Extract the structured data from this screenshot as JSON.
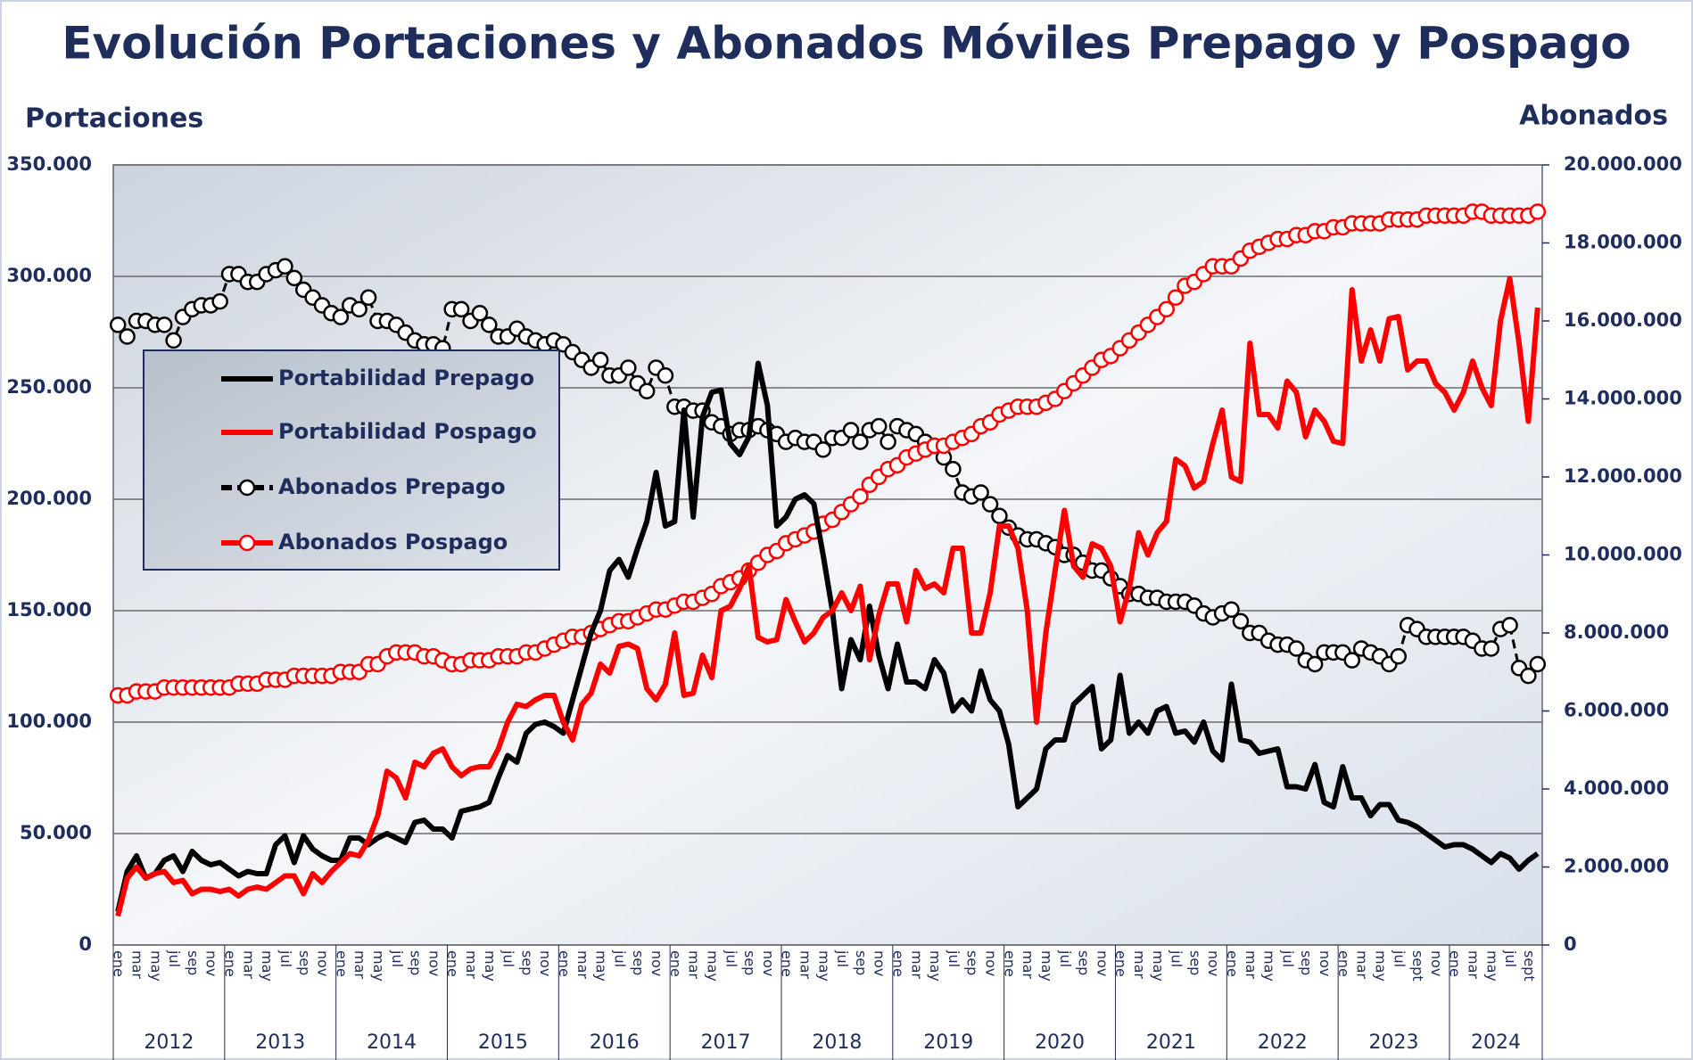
{
  "chart_data": {
    "type": "line",
    "title": "Evolución Portaciones y Abonados Móviles Prepago y Pospago",
    "y_label": "Portaciones",
    "y2_label": "Abonados",
    "years": [
      "2012",
      "2013",
      "2014",
      "2015",
      "2016",
      "2017",
      "2018",
      "2019",
      "2020",
      "2021",
      "2022",
      "2023",
      "2024"
    ],
    "categories": [
      "ene",
      null,
      "mar",
      null,
      "may",
      null,
      "jul",
      null,
      "sep",
      null,
      "nov",
      null,
      "ene",
      null,
      "mar",
      null,
      "may",
      null,
      "jul",
      null,
      "sep",
      null,
      "nov",
      null,
      "ene",
      null,
      "mar",
      null,
      "may",
      null,
      "jul",
      null,
      "sep",
      null,
      "nov",
      null,
      "ene",
      null,
      "mar",
      null,
      "may",
      null,
      "jul",
      null,
      "sep",
      null,
      "nov",
      null,
      "ene",
      null,
      "mar",
      null,
      "may",
      null,
      "jul",
      null,
      "sep",
      null,
      "nov",
      null,
      "ene",
      null,
      "mar",
      null,
      "may",
      null,
      "jul",
      null,
      "sep",
      null,
      "nov",
      null,
      "ene",
      null,
      "mar",
      null,
      "may",
      null,
      "jul",
      null,
      "sep",
      null,
      "nov",
      null,
      "ene",
      null,
      "mar",
      null,
      "may",
      null,
      "jul",
      null,
      "sep",
      null,
      "nov",
      null,
      "ene",
      null,
      "mar",
      null,
      "may",
      null,
      "jul",
      null,
      "sep",
      null,
      "nov",
      null,
      "ene",
      null,
      "mar",
      null,
      "may",
      null,
      "jul",
      null,
      "sep",
      null,
      "nov",
      null,
      "ene",
      null,
      "mar",
      null,
      "may",
      null,
      "jul",
      null,
      "sep",
      null,
      "nov",
      null,
      "ene",
      null,
      "mar",
      null,
      "may",
      null,
      "jul",
      null,
      "sept",
      null,
      "nov",
      null,
      "ene",
      null,
      "mar",
      null,
      "may",
      null,
      "jul",
      null,
      "sept",
      null
    ],
    "ylim": [
      0,
      350000
    ],
    "yticks": [
      0,
      {
        "value": 50000,
        "label": "50.000"
      },
      {
        "value": 100000,
        "label": "100.000"
      },
      {
        "value": 150000,
        "label": "150.000"
      },
      {
        "value": 200000,
        "label": "200.000"
      },
      {
        "value": 250000,
        "label": "250.000"
      },
      {
        "value": 300000,
        "label": "300.000"
      },
      {
        "value": 350000,
        "label": "350.000"
      }
    ],
    "y2lim": [
      0,
      20000000
    ],
    "y2ticks": [
      0,
      {
        "value": 2000000,
        "label": "2.000.000"
      },
      {
        "value": 4000000,
        "label": "4.000.000"
      },
      {
        "value": 6000000,
        "label": "6.000.000"
      },
      {
        "value": 8000000,
        "label": "8.000.000"
      },
      {
        "value": 10000000,
        "label": "10.000.000"
      },
      {
        "value": 12000000,
        "label": "12.000.000"
      },
      {
        "value": 14000000,
        "label": "14.000.000"
      },
      {
        "value": 16000000,
        "label": "16.000.000"
      },
      {
        "value": 18000000,
        "label": "18.000.000"
      },
      {
        "value": 20000000,
        "label": "20.000.000"
      }
    ],
    "grid": true,
    "legend": "upper left",
    "series": [
      {
        "name": "Portabilidad Prepago",
        "color": "#000000",
        "values": [
          15000,
          33000,
          40000,
          30000,
          32000,
          38000,
          40000,
          33000,
          42000,
          38000,
          36000,
          37000,
          34000,
          31000,
          33000,
          32000,
          32000,
          45000,
          49000,
          37000,
          49000,
          43000,
          40000,
          38000,
          38000,
          48000,
          48000,
          45000,
          48000,
          50000,
          48000,
          46000,
          55000,
          56000,
          52000,
          52000,
          48000,
          60000,
          61000,
          62000,
          64000,
          75000,
          85000,
          82000,
          95000,
          99000,
          100000,
          98000,
          95000,
          110000,
          125000,
          140000,
          150000,
          168000,
          173000,
          165000,
          178000,
          190000,
          212000,
          188000,
          190000,
          240000,
          192000,
          237000,
          248000,
          249000,
          225000,
          220000,
          228000,
          261000,
          242000,
          188000,
          192000,
          200000,
          202000,
          198000,
          175000,
          150000,
          115000,
          137000,
          128000,
          152000,
          130000,
          115000,
          135000,
          118000,
          118000,
          115000,
          128000,
          122000,
          105000,
          110000,
          105000,
          123000,
          110000,
          105000,
          90000,
          62000,
          66000,
          70000,
          88000,
          92000,
          92000,
          108000,
          112000,
          116000,
          88000,
          92000,
          121000,
          95000,
          100000,
          95000,
          105000,
          107000,
          95000,
          96000,
          91000,
          100000,
          87000,
          83000,
          117000,
          92000,
          91000,
          86000,
          87000,
          88000,
          71000,
          71000,
          70000,
          81000,
          64000,
          62000,
          80000,
          66000,
          66000,
          58000,
          63000,
          63000,
          56000,
          55000,
          53000,
          50000,
          47000,
          44000,
          45000,
          45000,
          43000,
          40000,
          37000,
          41000,
          39000,
          34000,
          38000,
          41000
        ]
      },
      {
        "name": "Portabilidad Pospago",
        "color": "#ff0000",
        "values": [
          13000,
          30000,
          35000,
          30000,
          32000,
          33000,
          28000,
          29000,
          23000,
          25000,
          25000,
          24000,
          25000,
          22000,
          25000,
          26000,
          25000,
          28000,
          31000,
          31000,
          23000,
          32000,
          28000,
          33000,
          37000,
          41000,
          40000,
          47000,
          58000,
          78000,
          75000,
          66000,
          82000,
          80000,
          86000,
          88000,
          80000,
          76000,
          79000,
          80000,
          80000,
          88000,
          100000,
          108000,
          107000,
          110000,
          112000,
          112000,
          100000,
          92000,
          108000,
          113000,
          126000,
          122000,
          134000,
          135000,
          133000,
          115000,
          110000,
          117000,
          140000,
          112000,
          113000,
          130000,
          120000,
          150000,
          152000,
          160000,
          170000,
          138000,
          136000,
          137000,
          155000,
          145000,
          136000,
          140000,
          147000,
          150000,
          158000,
          150000,
          161000,
          128000,
          148000,
          162000,
          162000,
          145000,
          168000,
          160000,
          162000,
          158000,
          178000,
          178000,
          140000,
          140000,
          158000,
          188000,
          188000,
          178000,
          150000,
          100000,
          140000,
          168000,
          195000,
          170000,
          165000,
          180000,
          178000,
          170000,
          145000,
          160000,
          185000,
          175000,
          185000,
          190000,
          218000,
          215000,
          205000,
          208000,
          225000,
          240000,
          210000,
          208000,
          270000,
          238000,
          238000,
          232000,
          253000,
          248000,
          228000,
          240000,
          235000,
          226000,
          225000,
          294000,
          262000,
          276000,
          262000,
          281000,
          282000,
          258000,
          262000,
          262000,
          252000,
          248000,
          240000,
          248000,
          262000,
          250000,
          242000,
          280000,
          299000,
          270000,
          235000,
          286000
        ]
      },
      {
        "name": "Abonados Prepago",
        "color": "#000000",
        "axis": "y2",
        "marker": true,
        "dashed": true,
        "values": [
          15900000,
          15600000,
          16000000,
          16000000,
          15900000,
          15900000,
          15500000,
          16100000,
          16300000,
          16400000,
          16400000,
          16500000,
          17200000,
          17200000,
          17000000,
          17000000,
          17200000,
          17300000,
          17400000,
          17100000,
          16800000,
          16600000,
          16400000,
          16200000,
          16100000,
          16400000,
          16300000,
          16600000,
          16000000,
          16000000,
          15900000,
          15700000,
          15500000,
          15400000,
          15400000,
          15300000,
          16300000,
          16300000,
          16000000,
          16200000,
          15900000,
          15600000,
          15600000,
          15800000,
          15600000,
          15500000,
          15400000,
          15500000,
          15400000,
          15200000,
          15000000,
          14800000,
          15000000,
          14600000,
          14600000,
          14800000,
          14400000,
          14200000,
          14800000,
          14600000,
          13800000,
          13800000,
          13700000,
          13700000,
          13400000,
          13300000,
          13100000,
          13200000,
          13200000,
          13300000,
          13200000,
          13100000,
          12900000,
          13000000,
          12900000,
          12900000,
          12700000,
          13000000,
          13000000,
          13200000,
          12900000,
          13200000,
          13300000,
          12900000,
          13300000,
          13200000,
          13100000,
          12900000,
          12800000,
          12500000,
          12200000,
          11600000,
          11500000,
          11600000,
          11300000,
          11000000,
          10700000,
          10500000,
          10400000,
          10400000,
          10300000,
          10200000,
          10000000,
          10000000,
          9800000,
          9600000,
          9600000,
          9400000,
          9200000,
          9000000,
          9000000,
          8900000,
          8900000,
          8800000,
          8800000,
          8800000,
          8700000,
          8500000,
          8400000,
          8500000,
          8600000,
          8300000,
          8000000,
          8000000,
          7800000,
          7700000,
          7700000,
          7600000,
          7300000,
          7200000,
          7500000,
          7500000,
          7500000,
          7300000,
          7600000,
          7500000,
          7400000,
          7200000,
          7400000,
          8200000,
          8100000,
          7900000,
          7900000,
          7900000,
          7900000,
          7900000,
          7800000,
          7600000,
          7600000,
          8100000,
          8200000,
          7100000,
          6900000,
          7200000
        ]
      },
      {
        "name": "Abonados Pospago",
        "color": "#ff0000",
        "axis": "y2",
        "marker": true,
        "values": [
          6400000,
          6400000,
          6500000,
          6500000,
          6500000,
          6600000,
          6600000,
          6600000,
          6600000,
          6600000,
          6600000,
          6600000,
          6600000,
          6700000,
          6700000,
          6700000,
          6800000,
          6800000,
          6800000,
          6900000,
          6900000,
          6900000,
          6900000,
          6900000,
          7000000,
          7000000,
          7000000,
          7200000,
          7200000,
          7400000,
          7500000,
          7500000,
          7500000,
          7400000,
          7400000,
          7300000,
          7200000,
          7200000,
          7300000,
          7300000,
          7300000,
          7400000,
          7400000,
          7400000,
          7500000,
          7500000,
          7600000,
          7700000,
          7800000,
          7900000,
          7900000,
          8000000,
          8100000,
          8200000,
          8300000,
          8300000,
          8400000,
          8500000,
          8600000,
          8600000,
          8700000,
          8800000,
          8800000,
          8900000,
          9000000,
          9200000,
          9300000,
          9400000,
          9600000,
          9800000,
          10000000,
          10100000,
          10300000,
          10400000,
          10500000,
          10600000,
          10800000,
          10900000,
          11100000,
          11300000,
          11500000,
          11800000,
          12000000,
          12200000,
          12300000,
          12500000,
          12600000,
          12700000,
          12800000,
          12800000,
          12900000,
          13000000,
          13100000,
          13300000,
          13400000,
          13600000,
          13700000,
          13800000,
          13800000,
          13800000,
          13900000,
          14000000,
          14200000,
          14400000,
          14600000,
          14800000,
          15000000,
          15100000,
          15300000,
          15500000,
          15700000,
          15900000,
          16100000,
          16300000,
          16600000,
          16900000,
          17000000,
          17200000,
          17400000,
          17400000,
          17400000,
          17600000,
          17800000,
          17900000,
          18000000,
          18100000,
          18100000,
          18200000,
          18200000,
          18300000,
          18300000,
          18400000,
          18400000,
          18500000,
          18500000,
          18500000,
          18500000,
          18600000,
          18600000,
          18600000,
          18600000,
          18700000,
          18700000,
          18700000,
          18700000,
          18700000,
          18800000,
          18800000,
          18700000,
          18700000,
          18700000,
          18700000,
          18700000,
          18800000
        ]
      }
    ]
  }
}
